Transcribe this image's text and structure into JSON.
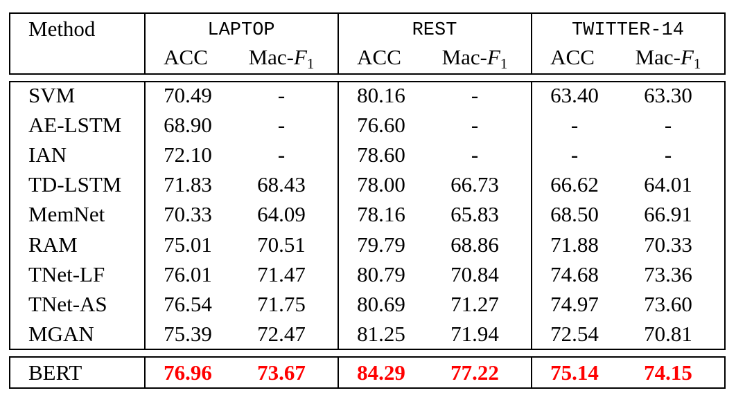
{
  "header": {
    "method_label": "Method",
    "datasets": [
      "LAPTOP",
      "REST",
      "TWITTER-14"
    ],
    "metric_acc": "ACC",
    "metric_mac_prefix": "Mac-",
    "metric_mac_var": "F",
    "metric_mac_sub": "1"
  },
  "rows": [
    {
      "method": "SVM",
      "values": [
        "70.49",
        "-",
        "80.16",
        "-",
        "63.40",
        "63.30"
      ]
    },
    {
      "method": "AE-LSTM",
      "values": [
        "68.90",
        "-",
        "76.60",
        "-",
        "-",
        "-"
      ]
    },
    {
      "method": "IAN",
      "values": [
        "72.10",
        "-",
        "78.60",
        "-",
        "-",
        "-"
      ]
    },
    {
      "method": "TD-LSTM",
      "values": [
        "71.83",
        "68.43",
        "78.00",
        "66.73",
        "66.62",
        "64.01"
      ]
    },
    {
      "method": "MemNet",
      "values": [
        "70.33",
        "64.09",
        "78.16",
        "65.83",
        "68.50",
        "66.91"
      ]
    },
    {
      "method": "RAM",
      "values": [
        "75.01",
        "70.51",
        "79.79",
        "68.86",
        "71.88",
        "70.33"
      ]
    },
    {
      "method": "TNet-LF",
      "values": [
        "76.01",
        "71.47",
        "80.79",
        "70.84",
        "74.68",
        "73.36"
      ]
    },
    {
      "method": "TNet-AS",
      "values": [
        "76.54",
        "71.75",
        "80.69",
        "71.27",
        "74.97",
        "73.60"
      ]
    },
    {
      "method": "MGAN",
      "values": [
        "75.39",
        "72.47",
        "81.25",
        "71.94",
        "72.54",
        "70.81"
      ]
    }
  ],
  "bert": {
    "method": "BERT",
    "values": [
      "76.96",
      "73.67",
      "84.29",
      "77.22",
      "75.14",
      "74.15"
    ]
  },
  "colors": {
    "highlight": "#ff0000"
  }
}
